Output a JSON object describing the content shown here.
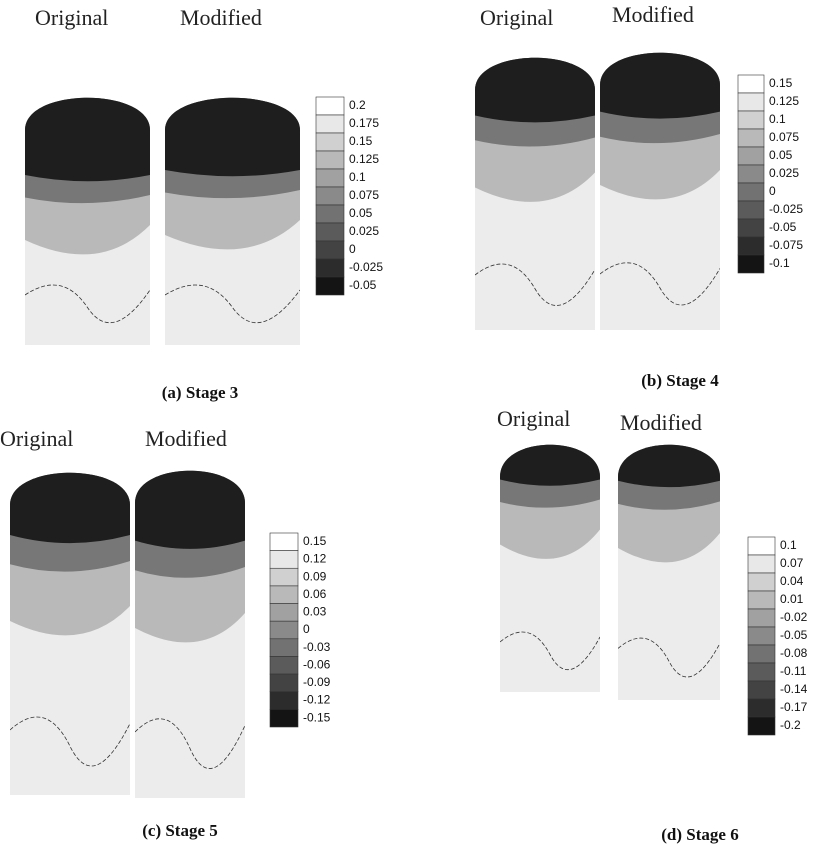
{
  "panels": [
    {
      "left_label": "Original",
      "right_label": "Modified",
      "caption": "(a)  Stage  3",
      "legend_levels": [
        "0.2",
        "0.175",
        "0.15",
        "0.125",
        "0.1",
        "0.075",
        "0.05",
        "0.025",
        "0",
        "-0.025",
        "-0.05"
      ]
    },
    {
      "left_label": "Original",
      "right_label": "Modified",
      "caption": "(b)  Stage  4",
      "legend_levels": [
        "0.15",
        "0.125",
        "0.1",
        "0.075",
        "0.05",
        "0.025",
        "0",
        "-0.025",
        "-0.05",
        "-0.075",
        "-0.1"
      ]
    },
    {
      "left_label": "Original",
      "right_label": "Modified",
      "caption": "(c)  Stage  5",
      "legend_levels": [
        "0.15",
        "0.12",
        "0.09",
        "0.06",
        "0.03",
        "0",
        "-0.03",
        "-0.06",
        "-0.09",
        "-0.12",
        "-0.15"
      ]
    },
    {
      "left_label": "Original",
      "right_label": "Modified",
      "caption": "(d)  Stage  6",
      "legend_levels": [
        "0.1",
        "0.07",
        "0.04",
        "0.01",
        "-0.02",
        "-0.05",
        "-0.08",
        "-0.11",
        "-0.14",
        "-0.17",
        "-0.2"
      ]
    }
  ]
}
